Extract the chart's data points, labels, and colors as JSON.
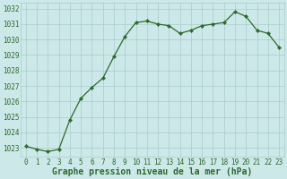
{
  "x": [
    0,
    1,
    2,
    3,
    4,
    5,
    6,
    7,
    8,
    9,
    10,
    11,
    12,
    13,
    14,
    15,
    16,
    17,
    18,
    19,
    20,
    21,
    22,
    23
  ],
  "y": [
    1023.1,
    1022.9,
    1022.75,
    1022.9,
    1024.8,
    1026.2,
    1026.9,
    1027.5,
    1028.9,
    1030.2,
    1031.1,
    1031.2,
    1031.0,
    1030.9,
    1030.4,
    1030.6,
    1030.9,
    1031.0,
    1031.1,
    1031.8,
    1031.5,
    1030.6,
    1030.4,
    1029.5
  ],
  "ylim": [
    1022.4,
    1032.4
  ],
  "yticks": [
    1023,
    1024,
    1025,
    1026,
    1027,
    1028,
    1029,
    1030,
    1031,
    1032
  ],
  "xticks": [
    0,
    1,
    2,
    3,
    4,
    5,
    6,
    7,
    8,
    9,
    10,
    11,
    12,
    13,
    14,
    15,
    16,
    17,
    18,
    19,
    20,
    21,
    22,
    23
  ],
  "xlabel": "Graphe pression niveau de la mer (hPa)",
  "line_color": "#2d6a2d",
  "marker": "D",
  "marker_size": 2.2,
  "bg_color": "#cce8e8",
  "grid_color": "#aacccc",
  "tick_label_color": "#2d6a2d",
  "xlabel_color": "#2d6a2d",
  "tick_fontsize": 5.5,
  "xlabel_fontsize": 7.0
}
